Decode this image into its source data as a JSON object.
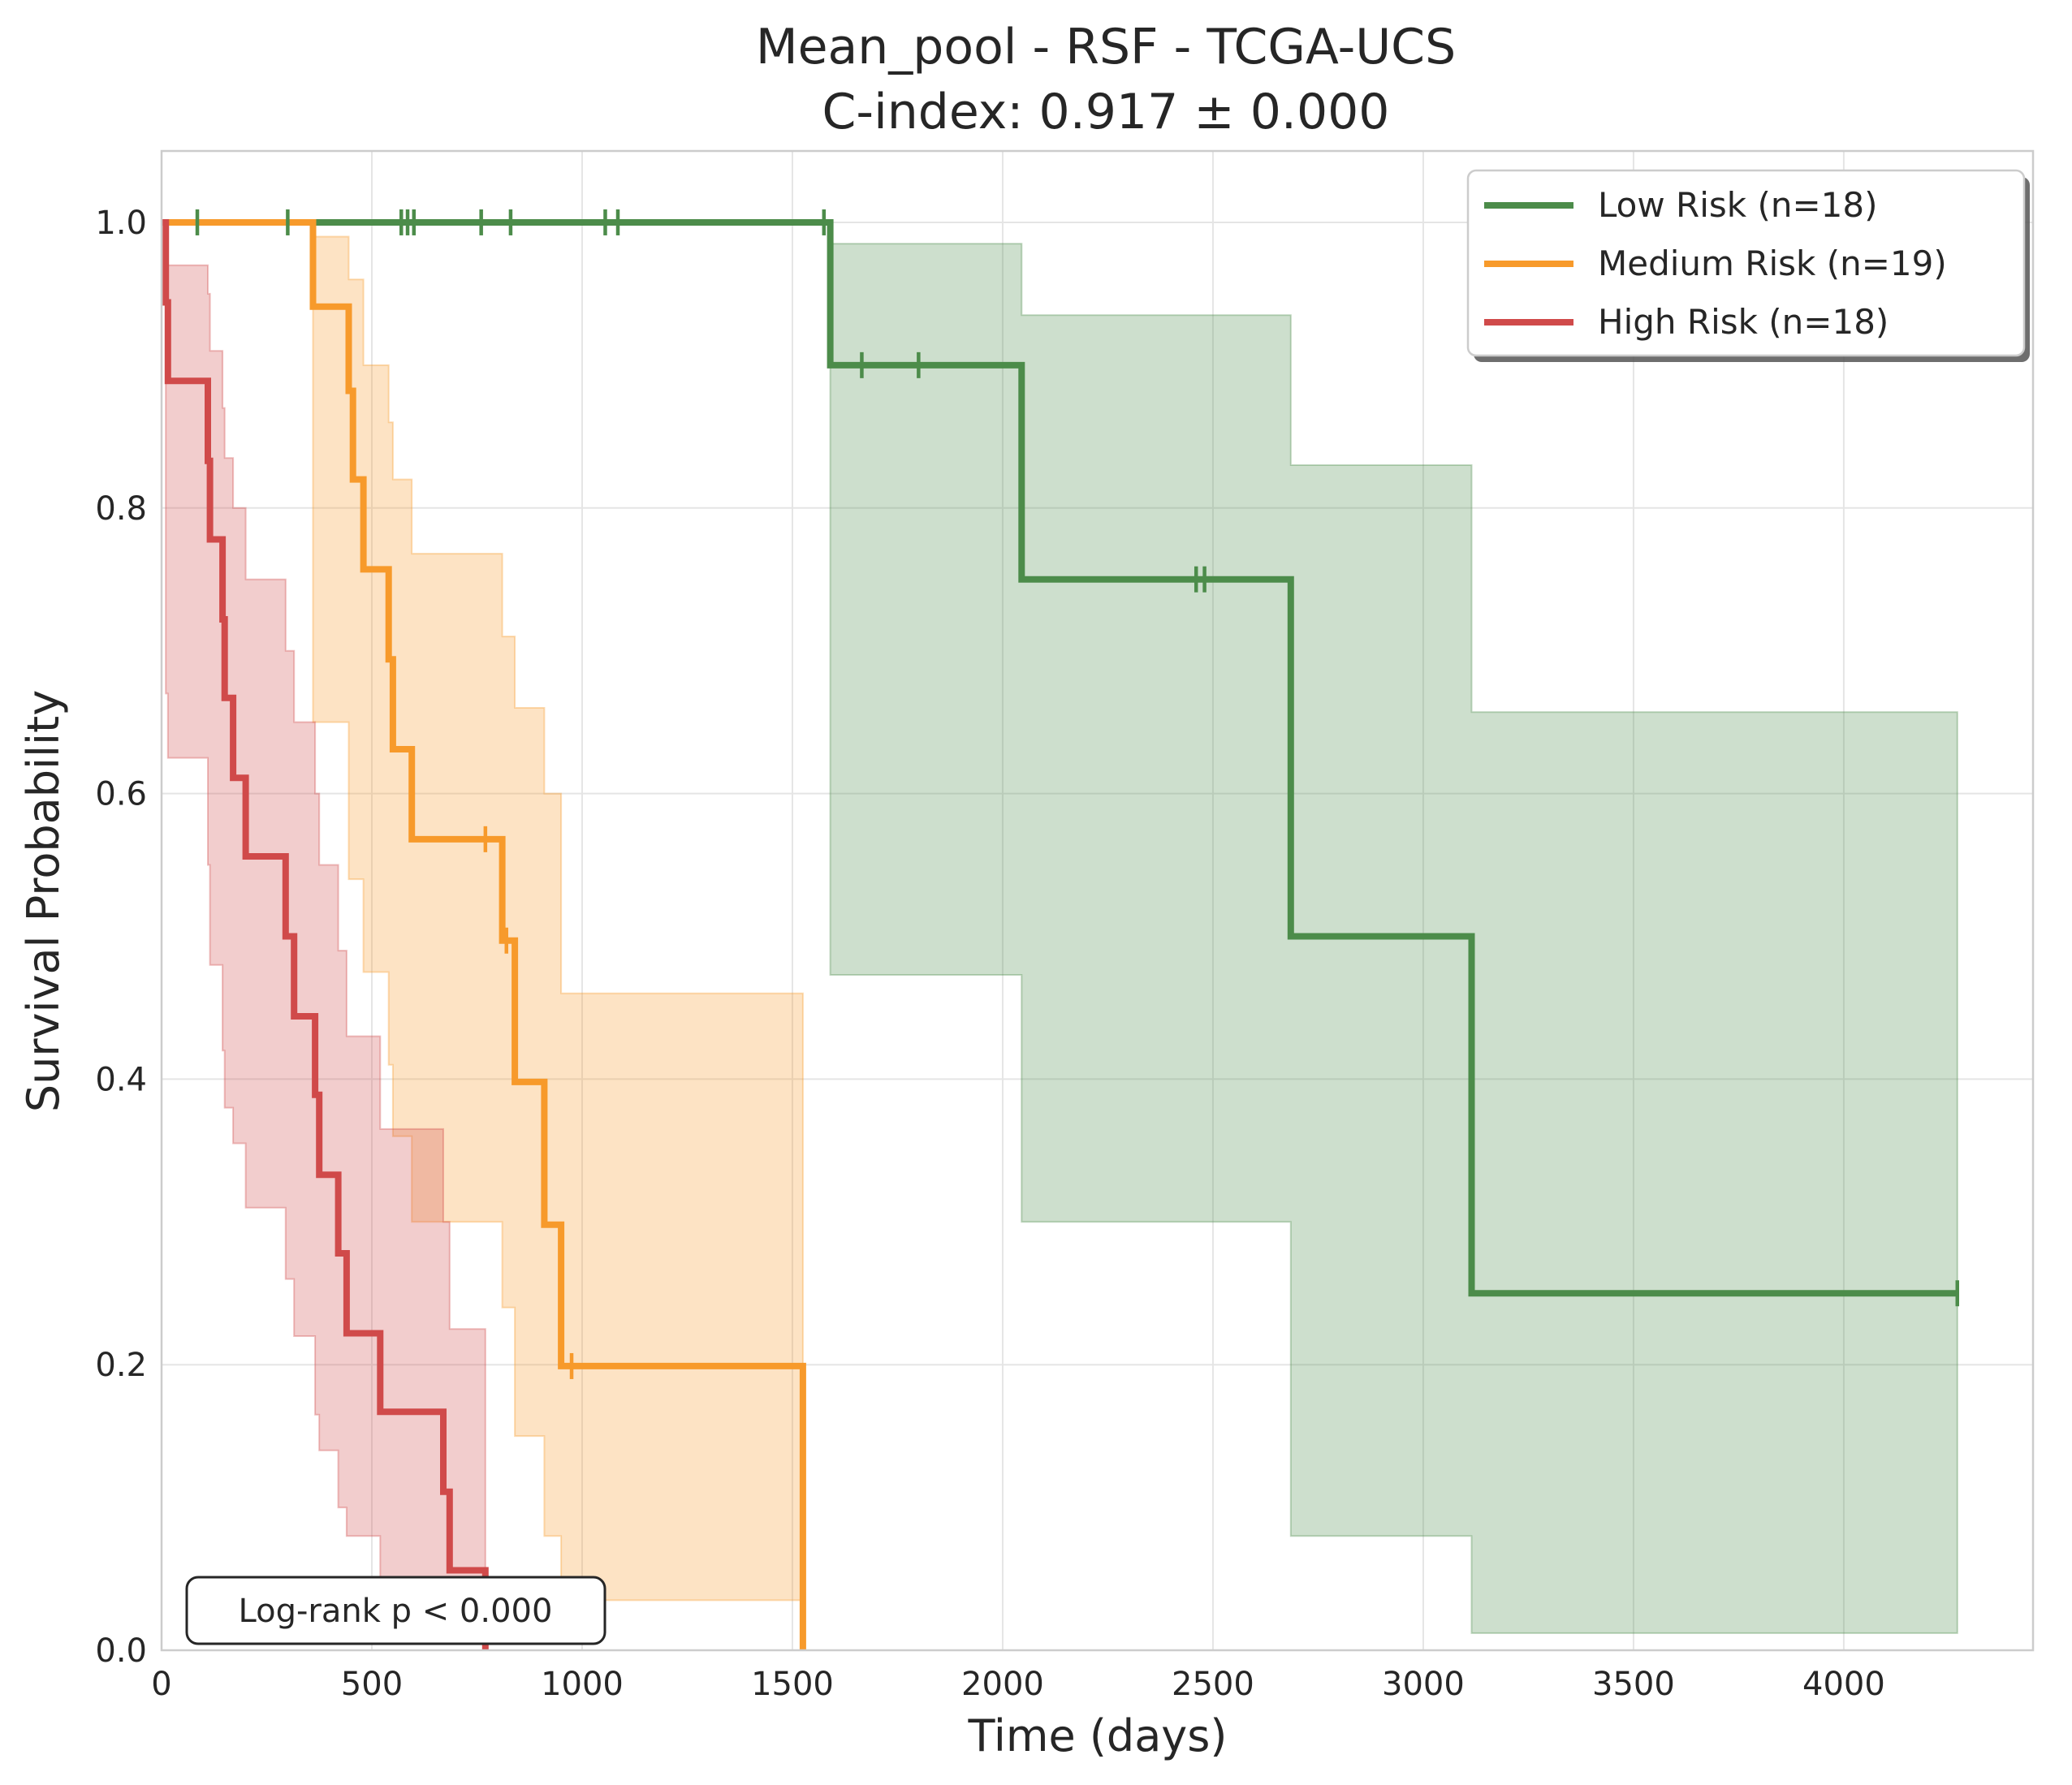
{
  "chart_data": {
    "type": "line",
    "subtype": "kaplan-meier step",
    "title": "Mean_pool - RSF - TCGA-UCS",
    "subtitle": "C-index: 0.917 ± 0.000",
    "xlabel": "Time (days)",
    "ylabel": "Survival Probability",
    "xlim": [
      0,
      4450
    ],
    "ylim": [
      0,
      1.05
    ],
    "xticks": [
      0,
      500,
      1000,
      1500,
      2000,
      2500,
      3000,
      3500,
      4000
    ],
    "xtick_labels": [
      "0",
      "500",
      "1000",
      "1500",
      "2000",
      "2500",
      "3000",
      "3500",
      "4000"
    ],
    "yticks": [
      0.0,
      0.2,
      0.4,
      0.6,
      0.8,
      1.0
    ],
    "ytick_labels": [
      "0.0",
      "0.2",
      "0.4",
      "0.6",
      "0.8",
      "1.0"
    ],
    "grid": true,
    "legend_position": "top-right",
    "annotation": "Log-rank p < 0.000",
    "series": [
      {
        "name": "Low Risk (n=18)",
        "color": "#4c8c4a",
        "steps": [
          [
            0,
            1.0
          ],
          [
            1590,
            0.9
          ],
          [
            2045,
            0.75
          ],
          [
            2685,
            0.5
          ],
          [
            3115,
            0.25
          ],
          [
            4270,
            0.25
          ]
        ],
        "ci": [
          [
            0,
            1.0,
            1.0
          ],
          [
            1590,
            0.473,
            0.985
          ],
          [
            2045,
            0.3,
            0.935
          ],
          [
            2685,
            0.08,
            0.83
          ],
          [
            3115,
            0.012,
            0.657
          ],
          [
            4270,
            0.012,
            0.657
          ]
        ],
        "censored": [
          [
            85,
            1.0
          ],
          [
            300,
            1.0
          ],
          [
            570,
            1.0
          ],
          [
            585,
            1.0
          ],
          [
            600,
            1.0
          ],
          [
            760,
            1.0
          ],
          [
            830,
            1.0
          ],
          [
            1055,
            1.0
          ],
          [
            1085,
            1.0
          ],
          [
            1575,
            1.0
          ],
          [
            1665,
            0.9
          ],
          [
            1800,
            0.9
          ],
          [
            2460,
            0.75
          ],
          [
            2480,
            0.75
          ],
          [
            4270,
            0.25
          ]
        ]
      },
      {
        "name": "Medium Risk (n=19)",
        "color": "#f79a2b",
        "steps": [
          [
            0,
            1.0
          ],
          [
            360,
            0.941
          ],
          [
            445,
            0.882
          ],
          [
            455,
            0.82
          ],
          [
            480,
            0.757
          ],
          [
            540,
            0.694
          ],
          [
            550,
            0.631
          ],
          [
            595,
            0.568
          ],
          [
            810,
            0.497
          ],
          [
            840,
            0.398
          ],
          [
            910,
            0.298
          ],
          [
            950,
            0.199
          ],
          [
            1525,
            0.0
          ]
        ],
        "ci": [
          [
            0,
            1.0,
            1.0
          ],
          [
            360,
            0.65,
            0.99
          ],
          [
            445,
            0.54,
            0.96
          ],
          [
            455,
            0.54,
            0.96
          ],
          [
            480,
            0.475,
            0.9
          ],
          [
            540,
            0.41,
            0.86
          ],
          [
            550,
            0.36,
            0.82
          ],
          [
            595,
            0.3,
            0.768
          ],
          [
            810,
            0.24,
            0.71
          ],
          [
            840,
            0.15,
            0.66
          ],
          [
            910,
            0.08,
            0.6
          ],
          [
            950,
            0.035,
            0.46
          ],
          [
            1525,
            0.035,
            0.46
          ]
        ],
        "censored": [
          [
            770,
            0.568
          ],
          [
            820,
            0.497
          ],
          [
            975,
            0.199
          ]
        ]
      },
      {
        "name": "High Risk (n=18)",
        "color": "#d04a4a",
        "steps": [
          [
            0,
            1.0
          ],
          [
            10,
            0.944
          ],
          [
            15,
            0.889
          ],
          [
            110,
            0.833
          ],
          [
            115,
            0.778
          ],
          [
            145,
            0.722
          ],
          [
            150,
            0.667
          ],
          [
            170,
            0.611
          ],
          [
            200,
            0.556
          ],
          [
            295,
            0.5
          ],
          [
            315,
            0.444
          ],
          [
            365,
            0.389
          ],
          [
            375,
            0.333
          ],
          [
            420,
            0.278
          ],
          [
            440,
            0.222
          ],
          [
            520,
            0.167
          ],
          [
            670,
            0.111
          ],
          [
            685,
            0.056
          ],
          [
            770,
            0.0
          ]
        ],
        "ci": [
          [
            0,
            1.0,
            1.0
          ],
          [
            10,
            0.67,
            0.99
          ],
          [
            15,
            0.625,
            0.97
          ],
          [
            110,
            0.55,
            0.95
          ],
          [
            115,
            0.48,
            0.91
          ],
          [
            145,
            0.42,
            0.87
          ],
          [
            150,
            0.38,
            0.835
          ],
          [
            170,
            0.355,
            0.8
          ],
          [
            200,
            0.31,
            0.75
          ],
          [
            295,
            0.26,
            0.7
          ],
          [
            315,
            0.22,
            0.65
          ],
          [
            365,
            0.165,
            0.6
          ],
          [
            375,
            0.14,
            0.55
          ],
          [
            420,
            0.1,
            0.49
          ],
          [
            440,
            0.08,
            0.43
          ],
          [
            520,
            0.05,
            0.365
          ],
          [
            670,
            0.01,
            0.3
          ],
          [
            685,
            0.005,
            0.225
          ],
          [
            770,
            0.005,
            0.225
          ]
        ],
        "censored": []
      }
    ]
  }
}
